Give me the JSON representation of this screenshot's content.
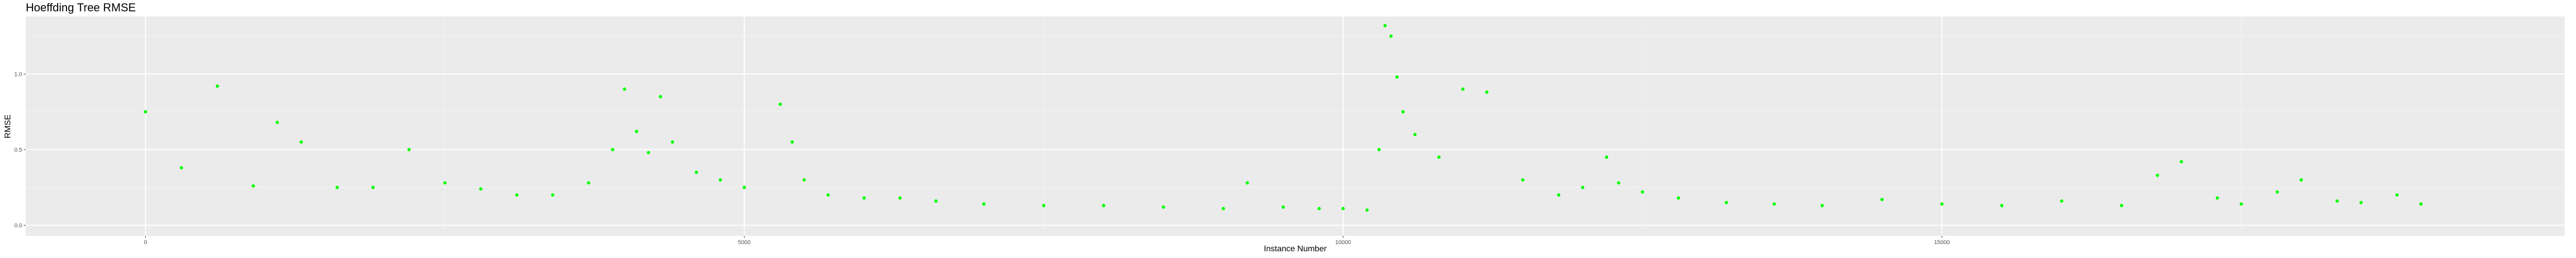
{
  "chart_data": {
    "type": "scatter",
    "title": "Hoeffding Tree RMSE",
    "xlabel": "Instance Number",
    "ylabel": "RMSE",
    "xlim": [
      -1000,
      20200
    ],
    "ylim": [
      -0.07,
      1.38
    ],
    "x_ticks": [
      {
        "value": 0,
        "label": "0"
      },
      {
        "value": 5000,
        "label": "5000"
      },
      {
        "value": 10000,
        "label": "10000"
      },
      {
        "value": 15000,
        "label": "15000"
      }
    ],
    "y_ticks": [
      {
        "value": 0.0,
        "label": "0.0"
      },
      {
        "value": 0.5,
        "label": "0.5"
      },
      {
        "value": 1.0,
        "label": "1.0"
      }
    ],
    "grid": true,
    "legend": "none",
    "panel_color": "#ebebeb",
    "point_color": "#00ff00",
    "series": [
      {
        "x": [
          0,
          300,
          600,
          900,
          1100,
          1300,
          1600,
          1900,
          2200,
          2500,
          2800,
          3100,
          3400,
          3700,
          3900,
          4000,
          4100,
          4200,
          4300,
          4400,
          4600,
          4800,
          5000,
          5300,
          5400,
          5500,
          5700,
          6000,
          6300,
          6600,
          7000,
          7500,
          8000,
          8500,
          9000,
          9200,
          9500,
          9800,
          10000,
          10200,
          10300,
          10350,
          10400,
          10450,
          10500,
          10600,
          10800,
          11000,
          11200,
          11500,
          11800,
          12000,
          12200,
          12300,
          12500,
          12800,
          13200,
          13600,
          14000,
          14500,
          15000,
          15500,
          16000,
          16500,
          16800,
          17000,
          17300,
          17500,
          17800,
          18000,
          18300,
          18500,
          18800,
          19000
        ],
        "y": [
          0.75,
          0.38,
          0.92,
          0.26,
          0.68,
          0.55,
          0.25,
          0.25,
          0.5,
          0.28,
          0.24,
          0.2,
          0.2,
          0.28,
          0.5,
          0.9,
          0.62,
          0.48,
          0.85,
          0.55,
          0.35,
          0.3,
          0.25,
          0.8,
          0.55,
          0.3,
          0.2,
          0.18,
          0.18,
          0.16,
          0.14,
          0.13,
          0.13,
          0.12,
          0.11,
          0.28,
          0.12,
          0.11,
          0.11,
          0.1,
          0.5,
          1.32,
          1.25,
          0.98,
          0.75,
          0.6,
          0.45,
          0.9,
          0.88,
          0.3,
          0.2,
          0.25,
          0.45,
          0.28,
          0.22,
          0.18,
          0.15,
          0.14,
          0.13,
          0.17,
          0.14,
          0.13,
          0.16,
          0.13,
          0.33,
          0.42,
          0.18,
          0.14,
          0.22,
          0.3,
          0.16,
          0.15,
          0.2,
          0.14
        ]
      }
    ]
  }
}
